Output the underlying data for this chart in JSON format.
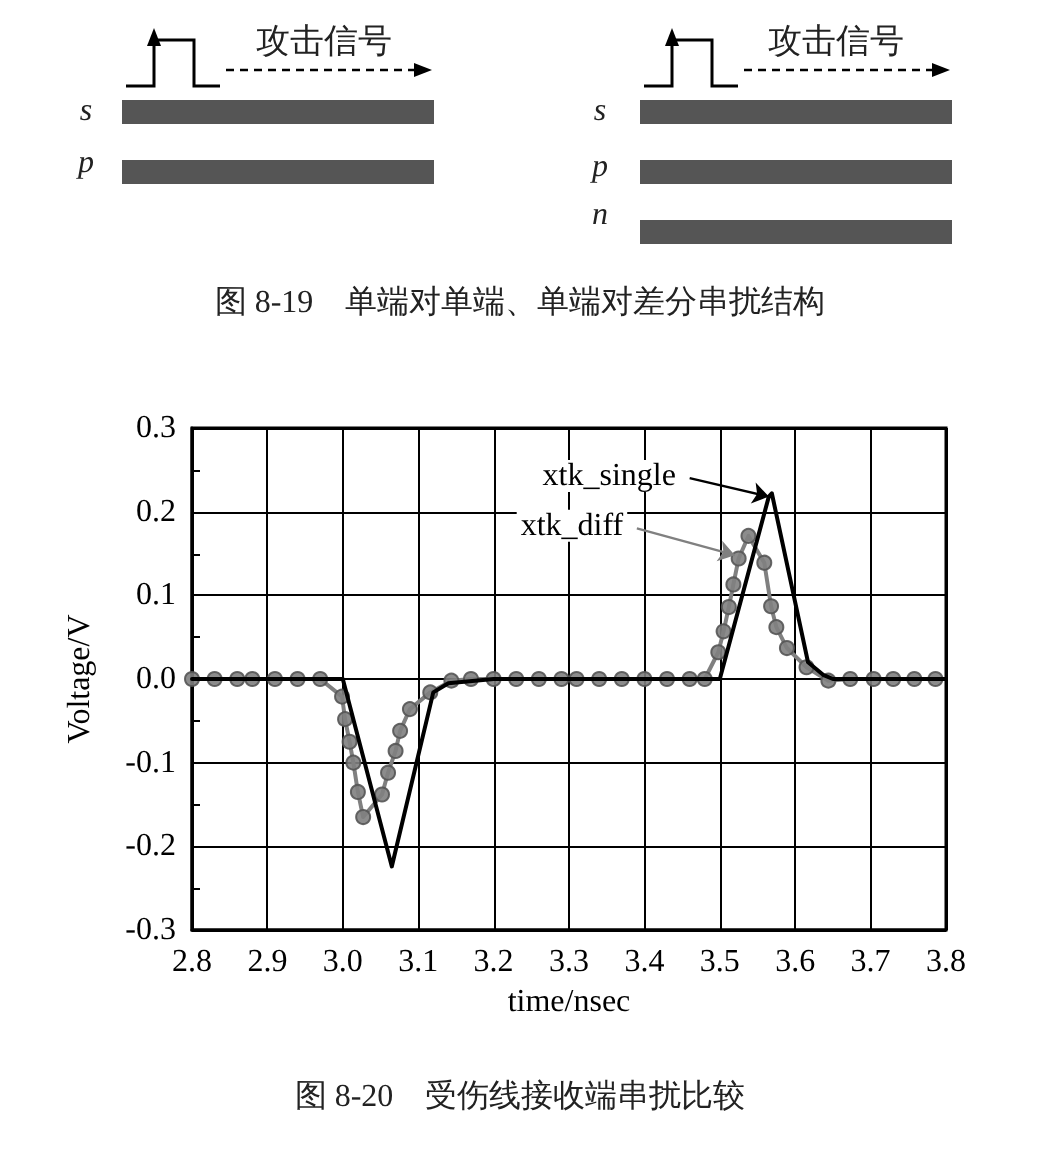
{
  "chart_data": {
    "type": "line",
    "xlabel": "time/nsec",
    "ylabel": "Voltage/V",
    "xlim": [
      2.8,
      3.8
    ],
    "xticks": [
      2.8,
      2.9,
      {
        "value": 3,
        "label": "3.0"
      },
      3.1,
      3.2,
      3.3,
      3.4,
      3.5,
      3.6,
      3.7,
      3.8
    ],
    "ylim": [
      -0.3,
      0.3
    ],
    "yticks": [
      -0.3,
      -0.2,
      -0.1,
      {
        "value": 0,
        "label": "0.0"
      },
      0.1,
      0.2,
      0.3
    ],
    "grid": true,
    "line_style": "solid",
    "series": [
      {
        "color": "#000000",
        "marker": "none",
        "x": [
          2.8,
          3.0,
          3.065,
          3.12,
          3.14,
          3.2,
          3.5,
          3.565,
          3.569,
          3.617,
          3.637,
          3.65,
          3.8
        ],
        "values": [
          0,
          0,
          -0.224,
          -0.016,
          -0.005,
          0,
          0,
          0.218,
          0.222,
          0.02,
          0.005,
          0,
          0
        ]
      },
      {
        "color": "#808080",
        "marker": "circle",
        "x": [
          2.8,
          2.83,
          2.86,
          2.88,
          2.91,
          2.94,
          2.97,
          2.999,
          3.003,
          3.009,
          3.014,
          3.02,
          3.027,
          3.052,
          3.06,
          3.07,
          3.076,
          3.089,
          3.116,
          3.144,
          3.17,
          3.2,
          3.23,
          3.26,
          3.29,
          3.31,
          3.34,
          3.37,
          3.4,
          3.43,
          3.46,
          3.48,
          3.498,
          3.505,
          3.512,
          3.518,
          3.525,
          3.538,
          3.559,
          3.568,
          3.575,
          3.589,
          3.615,
          3.644,
          3.673,
          3.704,
          3.73,
          3.758,
          3.786
        ],
        "values": [
          0,
          0,
          0,
          0,
          0,
          0,
          0,
          -0.021,
          -0.048,
          -0.075,
          -0.1,
          -0.135,
          -0.165,
          -0.138,
          -0.112,
          -0.086,
          -0.062,
          -0.036,
          -0.016,
          -0.002,
          0,
          0,
          0,
          0,
          0,
          0,
          0,
          0,
          0,
          0,
          0,
          0,
          0.032,
          0.057,
          0.086,
          0.113,
          0.144,
          0.171,
          0.139,
          0.087,
          0.062,
          0.037,
          0.014,
          -0.002,
          0,
          0,
          0,
          0,
          0
        ]
      }
    ],
    "annotations": [
      {
        "text": "xtk_single",
        "x": 3.565,
        "y": 0.218
      },
      {
        "text": "xtk_diff",
        "x": 3.52,
        "y": 0.148
      },
      "攻击信号",
      "s",
      "p",
      "攻击信号",
      "s",
      "p",
      "n",
      "图 8-19　单端对单端、单端对差分串扰结构",
      "图 8-20　受伤线接收端串扰比较"
    ]
  }
}
